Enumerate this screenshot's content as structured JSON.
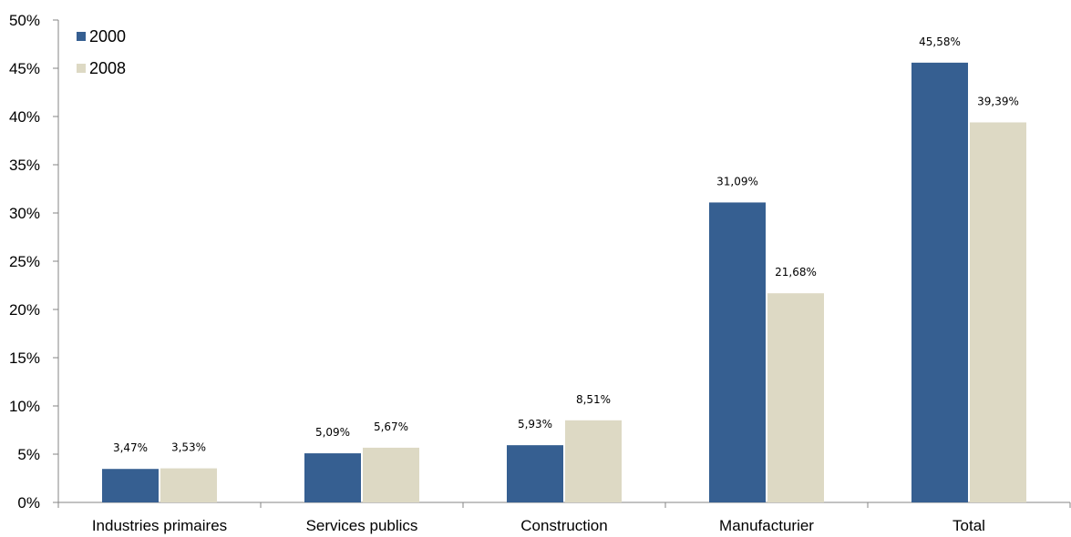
{
  "chart_data": {
    "type": "bar",
    "title": "",
    "xlabel": "",
    "ylabel": "",
    "categories": [
      "Industries primaires",
      "Services publics",
      "Construction",
      "Manufacturier",
      "Total"
    ],
    "series": [
      {
        "name": "2000",
        "color": "#365f91",
        "values": [
          3.47,
          5.09,
          5.93,
          31.09,
          45.58
        ],
        "labels": [
          "3,47%",
          "5,09%",
          "5,93%",
          "31,09%",
          "45,58%"
        ]
      },
      {
        "name": "2008",
        "color": "#ddd9c4",
        "values": [
          3.53,
          5.67,
          8.51,
          21.68,
          39.39
        ],
        "labels": [
          "3,53%",
          "5,67%",
          "8,51%",
          "21,68%",
          "39,39%"
        ]
      }
    ],
    "ylim": [
      0,
      50
    ],
    "yticks": [
      0,
      5,
      10,
      15,
      20,
      25,
      30,
      35,
      40,
      45,
      50
    ],
    "ytick_labels": [
      "0%",
      "5%",
      "10%",
      "15%",
      "20%",
      "25%",
      "30%",
      "35%",
      "40%",
      "45%",
      "50%"
    ],
    "grid": false,
    "legend_position": "top-left"
  }
}
